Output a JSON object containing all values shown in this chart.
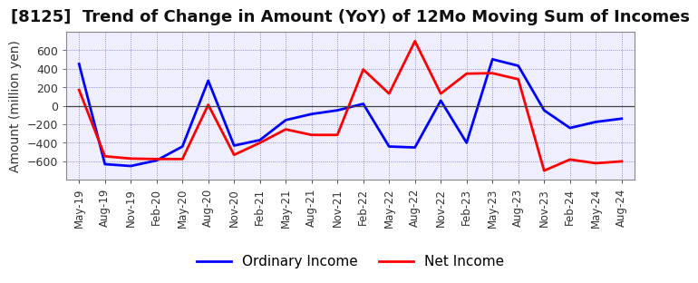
{
  "title": "[8125]  Trend of Change in Amount (YoY) of 12Mo Moving Sum of Incomes",
  "ylabel": "Amount (million yen)",
  "x_labels": [
    "May-19",
    "Aug-19",
    "Nov-19",
    "Feb-20",
    "May-20",
    "Aug-20",
    "Nov-20",
    "Feb-21",
    "May-21",
    "Aug-21",
    "Nov-21",
    "Feb-22",
    "May-22",
    "Aug-22",
    "Nov-22",
    "Feb-23",
    "May-23",
    "Aug-23",
    "Nov-23",
    "Feb-24",
    "May-24",
    "Aug-24"
  ],
  "ordinary_income": [
    450,
    -630,
    -650,
    -590,
    -440,
    270,
    -430,
    -370,
    -155,
    -90,
    -50,
    20,
    -440,
    -450,
    55,
    -400,
    500,
    430,
    -50,
    -240,
    -175,
    -140
  ],
  "net_income": [
    170,
    -545,
    -570,
    -575,
    -575,
    10,
    -530,
    -400,
    -255,
    -315,
    -315,
    390,
    130,
    695,
    130,
    345,
    350,
    285,
    -700,
    -580,
    -620,
    -600
  ],
  "ordinary_color": "#0000FF",
  "net_color": "#FF0000",
  "background_color": "#FFFFFF",
  "plot_bg_color": "#EEEEFF",
  "grid_color": "#7777BB",
  "ylim": [
    -800,
    800
  ],
  "yticks": [
    -600,
    -400,
    -200,
    0,
    200,
    400,
    600
  ],
  "legend_ordinary": "Ordinary Income",
  "legend_net": "Net Income",
  "title_fontsize": 13,
  "axis_fontsize": 10,
  "legend_fontsize": 11
}
